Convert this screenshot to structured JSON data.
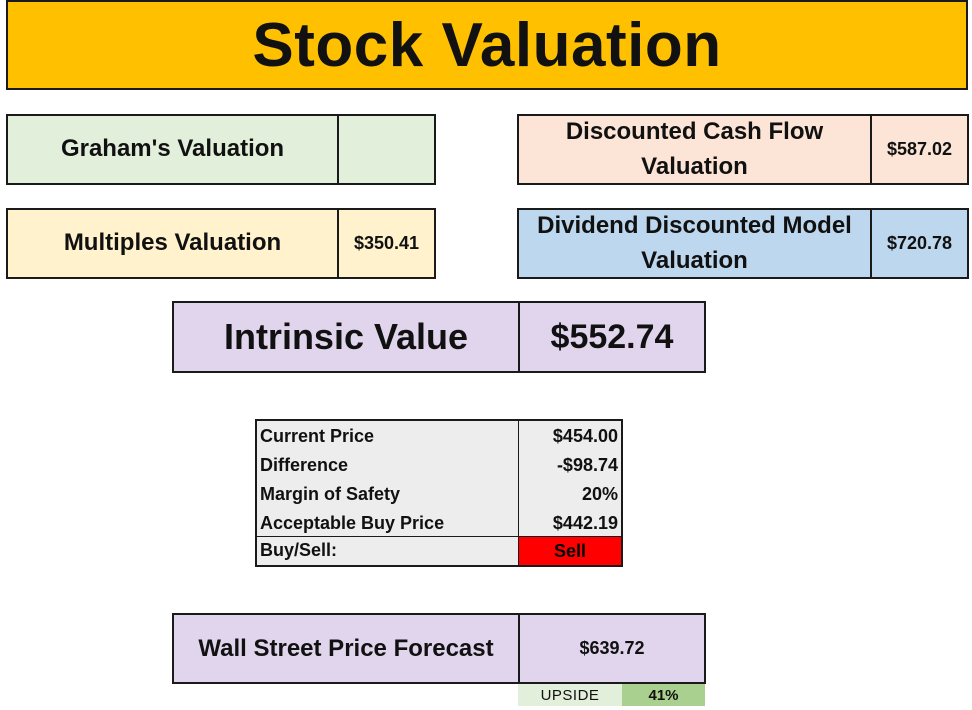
{
  "title": "Stock Valuation",
  "valuations": {
    "graham": {
      "label": "Graham's Valuation",
      "value": ""
    },
    "dcf": {
      "label": "Discounted Cash Flow Valuation",
      "value": "$587.02"
    },
    "multiples": {
      "label": "Multiples Valuation",
      "value": "$350.41"
    },
    "ddm": {
      "label": "Dividend Discounted Model Valuation",
      "value": "$720.78"
    }
  },
  "intrinsic": {
    "label": "Intrinsic Value",
    "value": "$552.74"
  },
  "price_table": {
    "rows": [
      {
        "label": "Current Price",
        "value": "$454.00"
      },
      {
        "label": "Difference",
        "value": "-$98.74"
      },
      {
        "label": "Margin of Safety",
        "value": "20%"
      },
      {
        "label": "Acceptable Buy Price",
        "value": "$442.19"
      }
    ],
    "signal_label": "Buy/Sell:",
    "signal_value": "Sell"
  },
  "forecast": {
    "label": "Wall Street Price Forecast",
    "value": "$639.72"
  },
  "upside": {
    "label": "UPSIDE",
    "value": "41%"
  },
  "colors": {
    "banner": "#ffc000",
    "graham": "#e2efda",
    "dcf": "#fce4d6",
    "multiples": "#fff2cc",
    "ddm": "#bdd7ee",
    "intrinsic": "#e1d5ed",
    "sell": "#ff0000",
    "upside": "#a9d08e"
  }
}
